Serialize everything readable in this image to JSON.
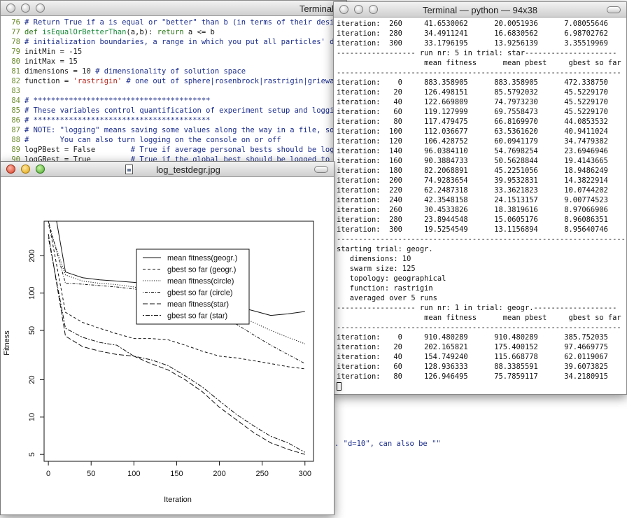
{
  "editor": {
    "title": "Terminal",
    "lines": [
      {
        "num": "76",
        "segments": [
          {
            "t": "# Return True if a is equal or \"better\" than b (in terms of their desi",
            "c": "comment"
          }
        ]
      },
      {
        "num": "77",
        "segments": [
          {
            "t": "def ",
            "c": "kw"
          },
          {
            "t": "isEqualOrBetterThan",
            "c": "fn"
          },
          {
            "t": "(a,b): ",
            "c": ""
          },
          {
            "t": "return",
            "c": "kw"
          },
          {
            "t": " a <= b",
            "c": ""
          }
        ]
      },
      {
        "num": "78",
        "segments": [
          {
            "t": "# initialization boundaries, a range in which you put all particles' d",
            "c": "comment"
          }
        ]
      },
      {
        "num": "79",
        "segments": [
          {
            "t": "initMin = -15",
            "c": ""
          }
        ]
      },
      {
        "num": "80",
        "segments": [
          {
            "t": "initMax = 15",
            "c": ""
          }
        ]
      },
      {
        "num": "81",
        "segments": [
          {
            "t": "dimensions = 10 ",
            "c": ""
          },
          {
            "t": "# dimensionality of solution space",
            "c": "comment"
          }
        ]
      },
      {
        "num": "82",
        "segments": [
          {
            "t": "function = ",
            "c": ""
          },
          {
            "t": "'rastrigin'",
            "c": "str"
          },
          {
            "t": " ",
            "c": ""
          },
          {
            "t": "# one out of sphere|rosenbrock|rastrigin|griewa",
            "c": "comment"
          }
        ]
      },
      {
        "num": "83",
        "segments": []
      },
      {
        "num": "84",
        "segments": [
          {
            "t": "# ****************************************",
            "c": "comment"
          }
        ]
      },
      {
        "num": "85",
        "segments": [
          {
            "t": "# These variables control quantification of experiment setup and loggi",
            "c": "comment"
          }
        ]
      },
      {
        "num": "86",
        "segments": [
          {
            "t": "# ****************************************",
            "c": "comment"
          }
        ]
      },
      {
        "num": "87",
        "segments": [
          {
            "t": "# NOTE: \"logging\" means saving some values along the way in a file, so",
            "c": "comment"
          }
        ]
      },
      {
        "num": "88",
        "segments": [
          {
            "t": "#       You can also turn logging on the console on or off",
            "c": "comment"
          }
        ]
      },
      {
        "num": "89",
        "segments": [
          {
            "t": "logPBest = False        ",
            "c": ""
          },
          {
            "t": "# True if average personal bests should be log",
            "c": "comment"
          }
        ]
      },
      {
        "num": "90",
        "segments": [
          {
            "t": "logGBest = True         ",
            "c": ""
          },
          {
            "t": "# True if the global best should be logged to fi",
            "c": "comment"
          }
        ]
      }
    ],
    "below_text": ". \"d=10\", can also be \"\""
  },
  "terminal": {
    "title": "Terminal — python — 94x38",
    "lines": [
      "iteration:  260     41.6530062      20.0051936      7.08055646",
      "iteration:  280     34.4911241      16.6830562      6.98702762",
      "iteration:  300     33.1796195      13.9256139      3.35519969",
      "------------------ run nr: 5 in trial: star---------------------",
      "                    mean fitness      mean pbest     gbest so far",
      "-----------------------------------------------------------------",
      "iteration:    0     883.358905      883.358905      472.338750",
      "iteration:   20     126.498151      85.5792032      45.5229170",
      "iteration:   40     122.669809      74.7973230      45.5229170",
      "iteration:   60     119.127999      69.7558473      45.5229170",
      "iteration:   80     117.479475      66.8169970      44.0853532",
      "iteration:  100     112.036677      63.5361620      40.9411024",
      "iteration:  120     106.428752      60.0941179      34.7479382",
      "iteration:  140     96.0384110      54.7698254      23.6946946",
      "iteration:  160     90.3884733      50.5628844      19.4143665",
      "iteration:  180     82.2068891      45.2251056      18.9486249",
      "iteration:  200     74.9283654      39.9532831      14.3822914",
      "iteration:  220     62.2487318      33.3621823      10.0744202",
      "iteration:  240     42.3548158      24.1513157      9.00774523",
      "iteration:  260     30.4533826      18.3819616      8.97066906",
      "iteration:  280     23.8944548      15.0605176      8.96086351",
      "iteration:  300     19.5254549      13.1156894      8.95640746",
      "------------------------------------------------------------------",
      "starting trial: geogr.",
      "   dimensions: 10",
      "   swarm size: 125",
      "   topology: geographical",
      "   function: rastrigin",
      "   averaged over 5 runs",
      "------------------ run nr: 1 in trial: geogr.-------------------",
      "                    mean fitness      mean pbest     gbest so far",
      "-----------------------------------------------------------------",
      "iteration:    0     910.480289      910.480289      385.752035",
      "iteration:   20     202.165821      175.400152      97.4669775",
      "iteration:   40     154.749240      115.668778      62.0119067",
      "iteration:   60     128.936333      88.3385591      39.6073825",
      "iteration:   80     126.946495      75.7859117      34.2180915"
    ]
  },
  "image_window": {
    "title": "log_testdegr.jpg"
  },
  "chart_data": {
    "type": "line",
    "title": "",
    "xlabel": "Iteration",
    "ylabel": "Fitness",
    "log_y": true,
    "xlim": [
      -5,
      310
    ],
    "ylim": [
      4.4,
      380
    ],
    "x_ticks": [
      0,
      50,
      100,
      150,
      200,
      250,
      300
    ],
    "y_ticks": [
      5,
      10,
      20,
      50,
      100,
      200
    ],
    "legend_position": "top-right",
    "x": [
      0,
      20,
      40,
      60,
      80,
      100,
      120,
      140,
      160,
      180,
      200,
      220,
      240,
      260,
      280,
      300
    ],
    "series": [
      {
        "name": "mean fitness(geogr.)",
        "dash": "solid",
        "values": [
          910,
          148,
          133,
          128,
          125,
          122,
          118,
          110,
          100,
          92,
          85,
          78,
          72,
          66,
          68,
          71
        ]
      },
      {
        "name": "gbest so far (geogr.)",
        "dash": "dashed",
        "values": [
          385,
          70,
          58,
          52,
          47,
          43,
          43,
          42,
          38,
          34,
          31,
          30,
          28.5,
          27,
          25.5,
          24.5
        ]
      },
      {
        "name": "mean fitness(circle)",
        "dash": "dotted",
        "values": [
          350,
          140,
          125,
          120,
          117,
          112,
          106,
          97,
          90,
          82,
          74,
          66,
          58,
          50,
          44,
          39
        ]
      },
      {
        "name": "gbest so far (circle)",
        "dash": "dotdash",
        "values": [
          380,
          120,
          118,
          115,
          112,
          108,
          103,
          95,
          86,
          77,
          66,
          56,
          46,
          38,
          32,
          27
        ]
      },
      {
        "name": "mean fitness(star)",
        "dash": "longdash",
        "values": [
          300,
          45,
          37,
          34,
          32,
          31,
          27,
          24,
          20,
          16,
          12,
          9.5,
          7.5,
          6.2,
          5.5,
          5.0
        ]
      },
      {
        "name": "gbest so far (star)",
        "dash": "twodash",
        "values": [
          280,
          52,
          44,
          40,
          38,
          31,
          29,
          26,
          21.5,
          17.5,
          13.5,
          10.5,
          8.5,
          7.0,
          6.2,
          5.2
        ]
      }
    ]
  }
}
